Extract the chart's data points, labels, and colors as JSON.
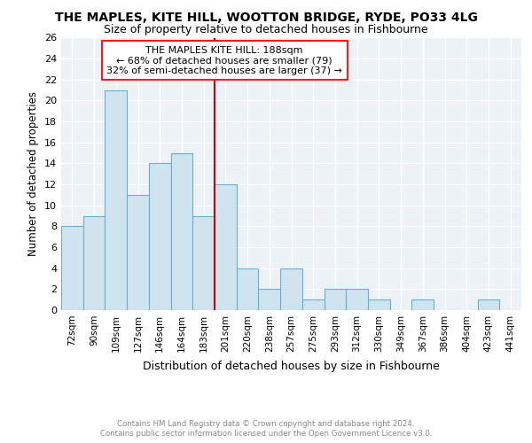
{
  "title": "THE MAPLES, KITE HILL, WOOTTON BRIDGE, RYDE, PO33 4LG",
  "subtitle": "Size of property relative to detached houses in Fishbourne",
  "xlabel": "Distribution of detached houses by size in Fishbourne",
  "ylabel": "Number of detached properties",
  "categories": [
    "72sqm",
    "90sqm",
    "109sqm",
    "127sqm",
    "146sqm",
    "164sqm",
    "183sqm",
    "201sqm",
    "220sqm",
    "238sqm",
    "257sqm",
    "275sqm",
    "293sqm",
    "312sqm",
    "330sqm",
    "349sqm",
    "367sqm",
    "386sqm",
    "404sqm",
    "423sqm",
    "441sqm"
  ],
  "values": [
    8,
    9,
    21,
    11,
    14,
    15,
    9,
    12,
    4,
    2,
    4,
    1,
    2,
    2,
    1,
    0,
    1,
    0,
    0,
    1,
    0
  ],
  "bar_color": "#d0e4f0",
  "bar_edge_color": "#6aadd5",
  "annotation_title": "THE MAPLES KITE HILL: 188sqm",
  "annotation_line1": "← 68% of detached houses are smaller (79)",
  "annotation_line2": "32% of semi-detached houses are larger (37) →",
  "vline_color": "#cc0000",
  "vline_x_index": 6.5,
  "ylim": [
    0,
    26
  ],
  "yticks": [
    0,
    2,
    4,
    6,
    8,
    10,
    12,
    14,
    16,
    18,
    20,
    22,
    24,
    26
  ],
  "footer1": "Contains HM Land Registry data © Crown copyright and database right 2024.",
  "footer2": "Contains public sector information licensed under the Open Government Licence v3.0.",
  "bg_color": "#ffffff",
  "plot_bg_color": "#edf2f7"
}
